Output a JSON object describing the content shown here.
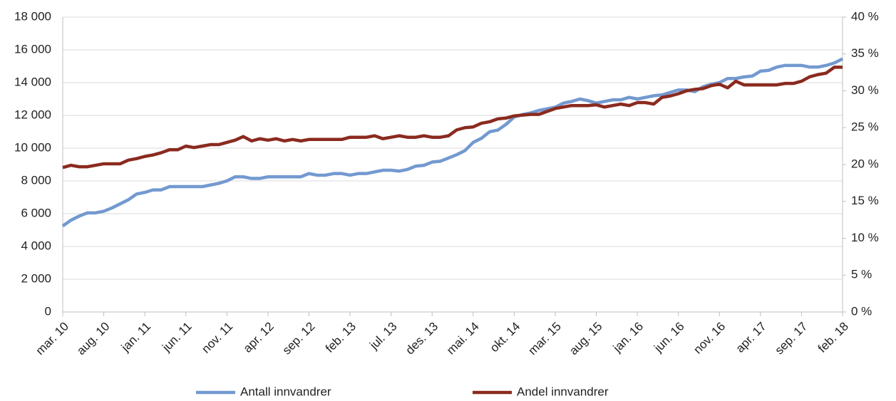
{
  "chart_data": {
    "type": "line",
    "categories": [
      "mar. 10",
      null,
      null,
      null,
      null,
      "aug. 10",
      null,
      null,
      null,
      null,
      "jan. 11",
      null,
      null,
      null,
      null,
      "jun. 11",
      null,
      null,
      null,
      null,
      "nov. 11",
      null,
      null,
      null,
      null,
      "apr. 12",
      null,
      null,
      null,
      null,
      "sep. 12",
      null,
      null,
      null,
      null,
      "feb. 13",
      null,
      null,
      null,
      null,
      "jul. 13",
      null,
      null,
      null,
      null,
      "des. 13",
      null,
      null,
      null,
      null,
      "mai. 14",
      null,
      null,
      null,
      null,
      "okt. 14",
      null,
      null,
      null,
      null,
      "mar. 15",
      null,
      null,
      null,
      null,
      "aug. 15",
      null,
      null,
      null,
      null,
      "jan. 16",
      null,
      null,
      null,
      null,
      "jun. 16",
      null,
      null,
      null,
      null,
      "nov. 16",
      null,
      null,
      null,
      null,
      "apr. 17",
      null,
      null,
      null,
      null,
      "sep. 17",
      null,
      null,
      null,
      null,
      "feb. 18"
    ],
    "series": [
      {
        "name": "Antall innvandrer",
        "color": "#7399d0",
        "values": [
          5250,
          5600,
          5850,
          6050,
          6050,
          6150,
          6350,
          6600,
          6850,
          7200,
          7300,
          7450,
          7450,
          7650,
          7650,
          7650,
          7650,
          7650,
          7750,
          7850,
          8000,
          8250,
          8250,
          8150,
          8150,
          8250,
          8250,
          8250,
          8250,
          8250,
          8450,
          8350,
          8350,
          8450,
          8450,
          8350,
          8450,
          8450,
          8550,
          8650,
          8650,
          8600,
          8700,
          8900,
          8950,
          9150,
          9200,
          9400,
          9600,
          9850,
          10350,
          10600,
          11000,
          11100,
          11450,
          11900,
          12050,
          12150,
          12300,
          12400,
          12500,
          12750,
          12850,
          13000,
          12900,
          12750,
          12850,
          12950,
          12950,
          13100,
          13000,
          13100,
          13200,
          13250,
          13400,
          13550,
          13550,
          13450,
          13750,
          13900,
          14000,
          14250,
          14250,
          14350,
          14400,
          14700,
          14750,
          14950,
          15050,
          15050,
          15050,
          14950,
          14950,
          15050,
          15200,
          15450
        ]
      },
      {
        "name": "Andel innvandrer",
        "color": "#8b2a1f",
        "axis": "y2",
        "values": [
          19.6,
          19.9,
          19.7,
          19.7,
          19.9,
          20.1,
          20.1,
          20.1,
          20.6,
          20.8,
          21.1,
          21.3,
          21.6,
          22.0,
          22.0,
          22.5,
          22.3,
          22.5,
          22.7,
          22.7,
          23.0,
          23.3,
          23.8,
          23.2,
          23.5,
          23.3,
          23.5,
          23.2,
          23.4,
          23.2,
          23.4,
          23.4,
          23.4,
          23.4,
          23.4,
          23.7,
          23.7,
          23.7,
          23.9,
          23.5,
          23.7,
          23.9,
          23.7,
          23.7,
          23.9,
          23.7,
          23.7,
          23.9,
          24.7,
          25.0,
          25.1,
          25.6,
          25.8,
          26.2,
          26.3,
          26.6,
          26.7,
          26.8,
          26.8,
          27.2,
          27.6,
          27.8,
          28.0,
          28.0,
          28.0,
          28.1,
          27.8,
          28.0,
          28.2,
          28.0,
          28.4,
          28.4,
          28.2,
          29.1,
          29.3,
          29.6,
          30.0,
          30.2,
          30.3,
          30.7,
          30.9,
          30.4,
          31.3,
          30.8,
          30.8,
          30.8,
          30.8,
          30.8,
          31.0,
          31.0,
          31.3,
          31.9,
          32.2,
          32.4,
          33.2,
          33.2
        ]
      }
    ],
    "ylim": [
      0,
      18000
    ],
    "yticks": [
      0,
      {
        "value": 2000,
        "label": "2 000"
      },
      {
        "value": 4000,
        "label": "4 000"
      },
      {
        "value": 6000,
        "label": "6 000"
      },
      {
        "value": 8000,
        "label": "8 000"
      },
      {
        "value": 10000,
        "label": "10 000"
      },
      {
        "value": 12000,
        "label": "12 000"
      },
      {
        "value": 14000,
        "label": "14 000"
      },
      {
        "value": 16000,
        "label": "16 000"
      },
      {
        "value": 18000,
        "label": "18 000"
      }
    ],
    "y2lim": [
      0,
      40
    ],
    "y2ticks": [
      {
        "value": 0,
        "label": "0 %"
      },
      {
        "value": 5,
        "label": "5 %"
      },
      {
        "value": 10,
        "label": "10 %"
      },
      {
        "value": 15,
        "label": "15 %"
      },
      {
        "value": 20,
        "label": "20 %"
      },
      {
        "value": 25,
        "label": "25 %"
      },
      {
        "value": 30,
        "label": "30 %"
      },
      {
        "value": 35,
        "label": "35 %"
      },
      {
        "value": 40,
        "label": "40 %"
      }
    ],
    "grid": true,
    "legend": "bottom"
  }
}
